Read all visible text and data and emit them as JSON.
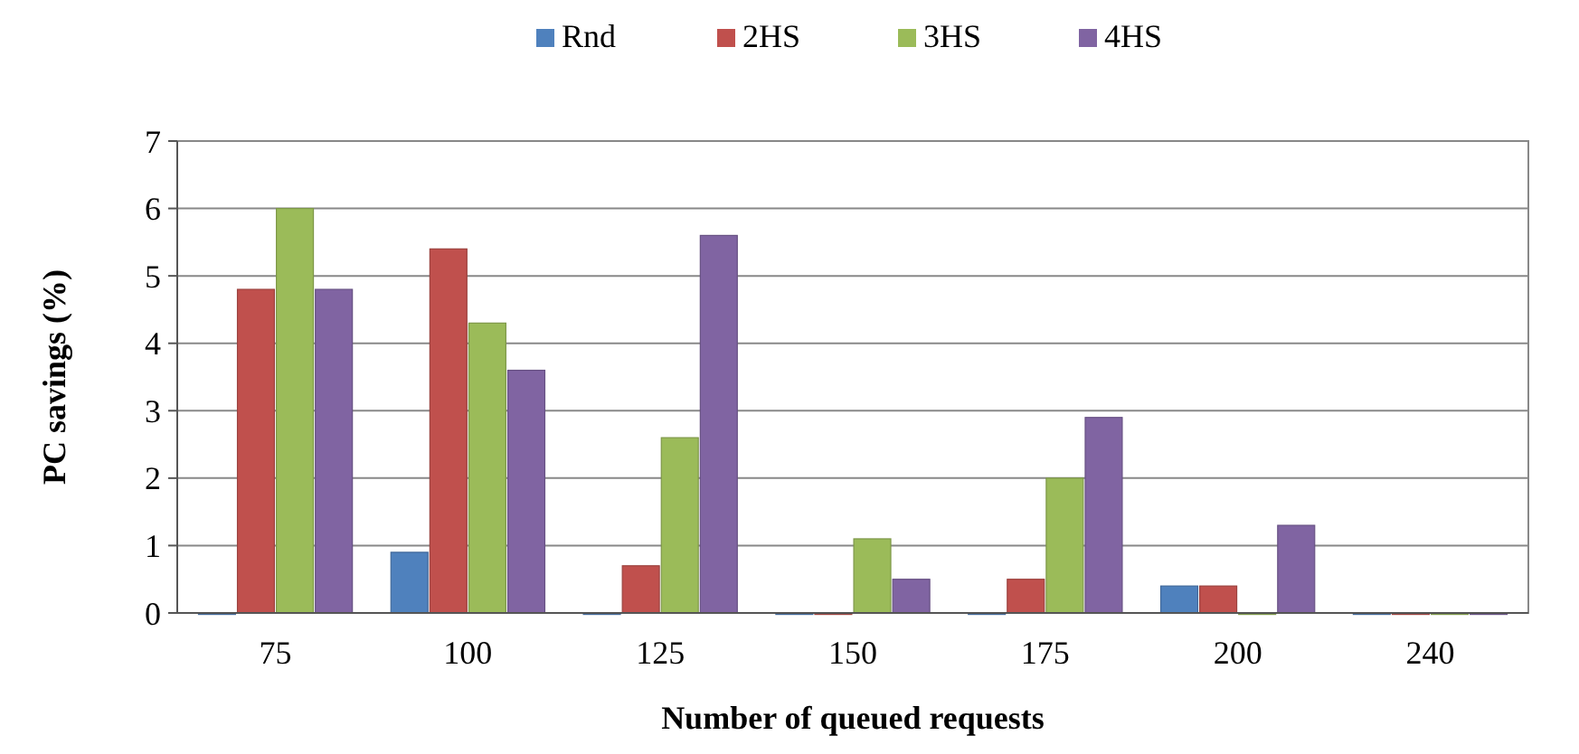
{
  "chart_data": {
    "type": "bar",
    "xlabel": "Number of queued requests",
    "ylabel": "PC savings (%)",
    "categories": [
      "75",
      "100",
      "125",
      "150",
      "175",
      "200",
      "240"
    ],
    "series": [
      {
        "name": "Rnd",
        "color": "#4f81bd",
        "values": [
          0,
          0.9,
          0,
          0,
          0,
          0.4,
          0
        ]
      },
      {
        "name": "2HS",
        "color": "#c0504d",
        "values": [
          4.8,
          5.4,
          0.7,
          0,
          0.5,
          0.4,
          0
        ]
      },
      {
        "name": "3HS",
        "color": "#9bbb59",
        "values": [
          6.0,
          4.3,
          2.6,
          1.1,
          2.0,
          0,
          0
        ]
      },
      {
        "name": "4HS",
        "color": "#8064a2",
        "values": [
          4.8,
          3.6,
          5.6,
          0.5,
          2.9,
          1.3,
          0
        ]
      }
    ],
    "ylim": [
      0,
      7
    ],
    "yticks": [
      0,
      1,
      2,
      3,
      4,
      5,
      6,
      7
    ],
    "grid": "y",
    "legend": "top"
  }
}
